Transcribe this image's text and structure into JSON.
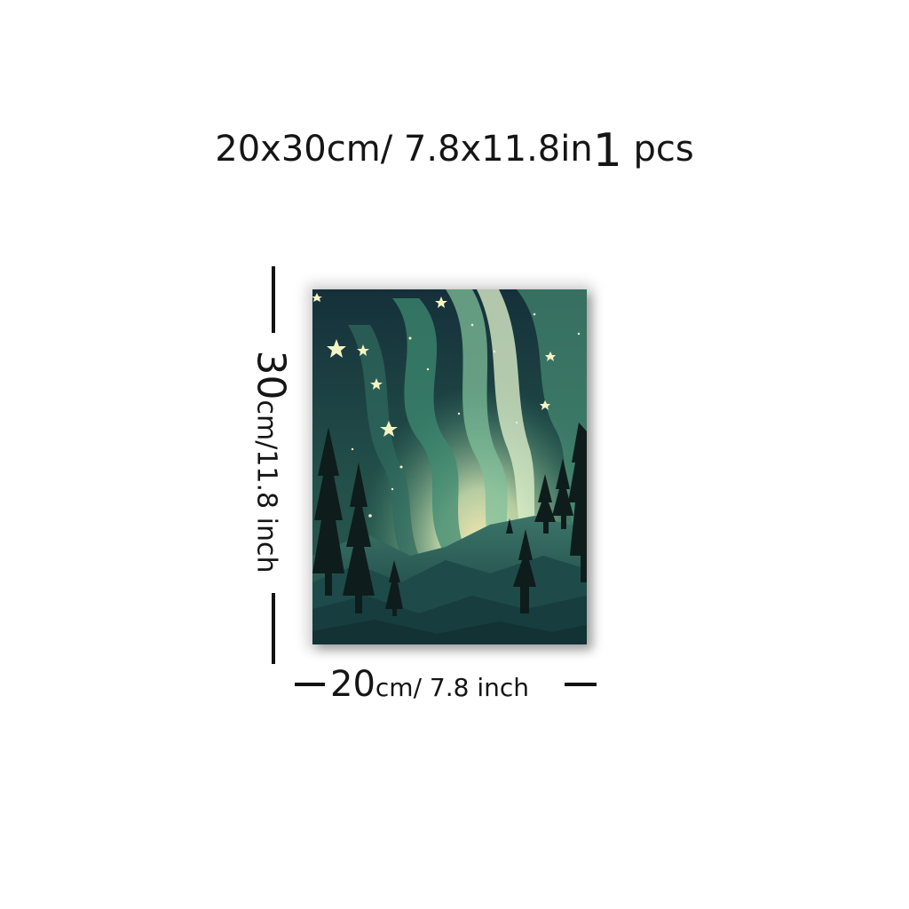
{
  "product": {
    "size_cm": "20x30cm",
    "size_sep": "/ ",
    "size_in": "7.8x11.8in",
    "qty_num": "1",
    "qty_unit": "pcs"
  },
  "dimensions": {
    "height_value": "30",
    "height_unit": "cm/11.8 inch",
    "width_value": "20",
    "width_unit": "cm/ 7.8 inch"
  },
  "artwork": {
    "subject": "aurora-forest-night-scene",
    "colors": {
      "sky_dark": "#17323a",
      "aurora_green": "#3f8f74",
      "aurora_light": "#cfe8c8",
      "glow_warm": "#efe2a8",
      "mountain": "#1f4a4a",
      "tree": "#0e1a1a",
      "star": "#f3f3c4"
    }
  }
}
